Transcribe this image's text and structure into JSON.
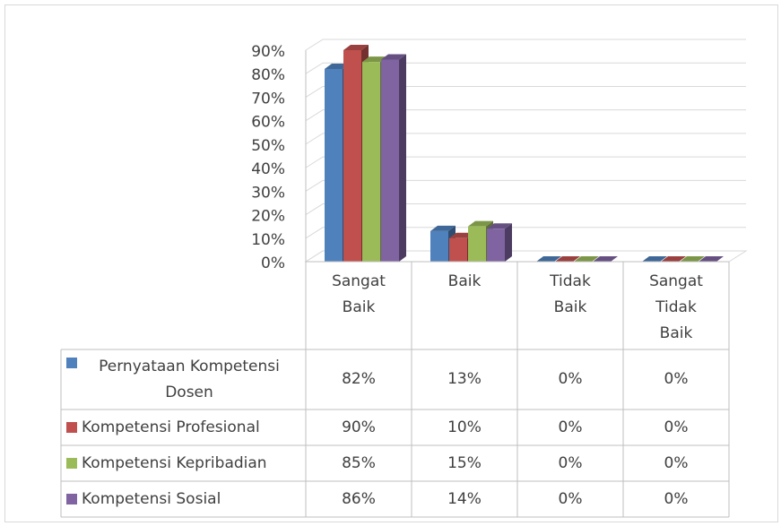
{
  "chart_data": {
    "type": "bar3d",
    "categories": [
      "Sangat Baik",
      "Baik",
      "Tidak Baik",
      "Sangat Tidak Baik"
    ],
    "series": [
      {
        "name": "Pernyataan Kompetensi Dosen",
        "color": "#4f81bd",
        "values": [
          82,
          13,
          0,
          0
        ],
        "value_labels": [
          "82%",
          "13%",
          "0%",
          "0%"
        ]
      },
      {
        "name": "Kompetensi Profesional",
        "color": "#c0504d",
        "values": [
          90,
          10,
          0,
          0
        ],
        "value_labels": [
          "90%",
          "10%",
          "0%",
          "0%"
        ]
      },
      {
        "name": "Kompetensi Kepribadian",
        "color": "#9bbb59",
        "values": [
          85,
          15,
          0,
          0
        ],
        "value_labels": [
          "85%",
          "15%",
          "0%",
          "0%"
        ]
      },
      {
        "name": "Kompetensi Sosial",
        "color": "#8064a2",
        "values": [
          86,
          14,
          0,
          0
        ],
        "value_labels": [
          "86%",
          "14%",
          "0%",
          "0%"
        ]
      }
    ],
    "ylim": [
      0,
      90
    ],
    "yticks": [
      {
        "value": 0,
        "label": "0%"
      },
      {
        "value": 10,
        "label": "10%"
      },
      {
        "value": 20,
        "label": "20%"
      },
      {
        "value": 30,
        "label": "30%"
      },
      {
        "value": 40,
        "label": "40%"
      },
      {
        "value": 50,
        "label": "50%"
      },
      {
        "value": 60,
        "label": "60%"
      },
      {
        "value": 70,
        "label": "70%"
      },
      {
        "value": 80,
        "label": "80%"
      },
      {
        "value": 90,
        "label": "90%"
      }
    ],
    "grid": true
  }
}
